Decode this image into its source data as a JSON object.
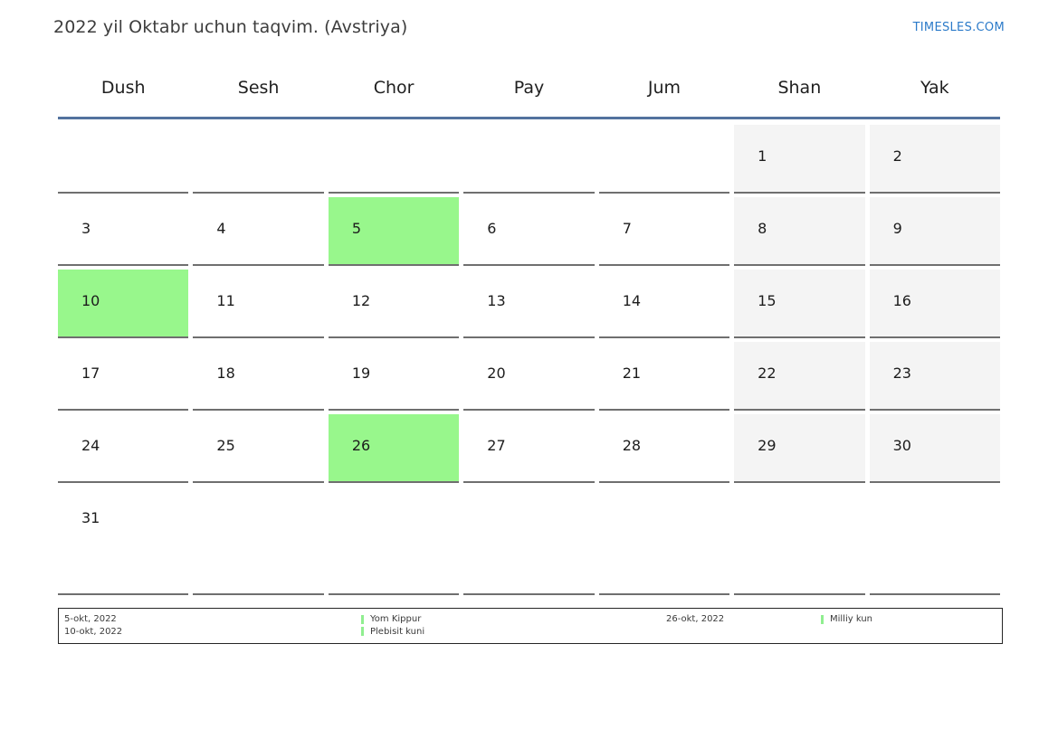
{
  "header": {
    "title": "2022 yil Oktabr uchun taqvim. (Avstriya)",
    "brand": "TIMESLES.COM"
  },
  "calendar": {
    "weekday_headers": [
      "Dush",
      "Sesh",
      "Chor",
      "Pay",
      "Jum",
      "Shan",
      "Yak"
    ],
    "weeks": [
      [
        {
          "day": ""
        },
        {
          "day": ""
        },
        {
          "day": ""
        },
        {
          "day": ""
        },
        {
          "day": ""
        },
        {
          "day": "1",
          "kind": "weekend"
        },
        {
          "day": "2",
          "kind": "weekend"
        }
      ],
      [
        {
          "day": "3"
        },
        {
          "day": "4"
        },
        {
          "day": "5",
          "kind": "holiday"
        },
        {
          "day": "6"
        },
        {
          "day": "7"
        },
        {
          "day": "8",
          "kind": "weekend"
        },
        {
          "day": "9",
          "kind": "weekend"
        }
      ],
      [
        {
          "day": "10",
          "kind": "holiday"
        },
        {
          "day": "11"
        },
        {
          "day": "12"
        },
        {
          "day": "13"
        },
        {
          "day": "14"
        },
        {
          "day": "15",
          "kind": "weekend"
        },
        {
          "day": "16",
          "kind": "weekend"
        }
      ],
      [
        {
          "day": "17"
        },
        {
          "day": "18"
        },
        {
          "day": "19"
        },
        {
          "day": "20"
        },
        {
          "day": "21"
        },
        {
          "day": "22",
          "kind": "weekend"
        },
        {
          "day": "23",
          "kind": "weekend"
        }
      ],
      [
        {
          "day": "24"
        },
        {
          "day": "25"
        },
        {
          "day": "26",
          "kind": "holiday"
        },
        {
          "day": "27"
        },
        {
          "day": "28"
        },
        {
          "day": "29",
          "kind": "weekend"
        },
        {
          "day": "30",
          "kind": "weekend"
        }
      ],
      [
        {
          "day": "31"
        },
        {
          "day": ""
        },
        {
          "day": ""
        },
        {
          "day": ""
        },
        {
          "day": ""
        },
        {
          "day": ""
        },
        {
          "day": ""
        }
      ]
    ]
  },
  "legend": {
    "columns": [
      {
        "type": "dates",
        "lines": [
          "5-okt, 2022",
          "10-okt, 2022"
        ]
      },
      {
        "type": "events",
        "lines": [
          "Yom Kippur",
          "Plebisit kuni"
        ]
      },
      {
        "type": "dates",
        "lines": [
          "26-okt, 2022"
        ]
      },
      {
        "type": "events",
        "lines": [
          "Milliy kun"
        ]
      }
    ]
  },
  "colors": {
    "holiday_green": "#98f78c",
    "weekend_gray": "#f4f4f4",
    "header_rule_blue": "#53729e",
    "brand_blue": "#2b7ac9",
    "cell_border_gray": "#6f6f6f",
    "legend_marker_green": "#90ee90"
  }
}
